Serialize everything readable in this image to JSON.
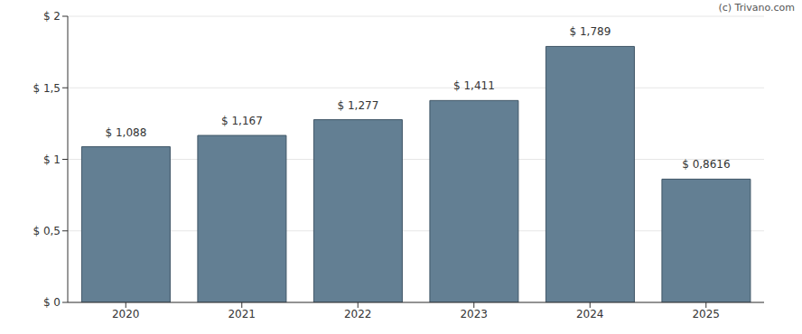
{
  "chart_data": {
    "type": "bar",
    "annotations": [
      "(c) Trivano.com"
    ],
    "categories": [
      "2020",
      "2021",
      "2022",
      "2023",
      "2024",
      "2025"
    ],
    "values": [
      1.088,
      1.167,
      1.277,
      1.411,
      1.789,
      0.8616
    ],
    "value_labels": [
      "$ 1,088",
      "$ 1,167",
      "$ 1,277",
      "$ 1,411",
      "$ 1,789",
      "$ 0,8616"
    ],
    "data_labels": true,
    "color": "#637f93",
    "ylim": [
      0,
      2
    ],
    "yticks": [
      {
        "value": 0,
        "label": "$ 0"
      },
      {
        "value": 0.5,
        "label": "$ 0,5"
      },
      {
        "value": 1,
        "label": "$ 1"
      },
      {
        "value": 1.5,
        "label": "$ 1,5"
      },
      {
        "value": 2,
        "label": "$ 2"
      }
    ],
    "grid": true
  }
}
